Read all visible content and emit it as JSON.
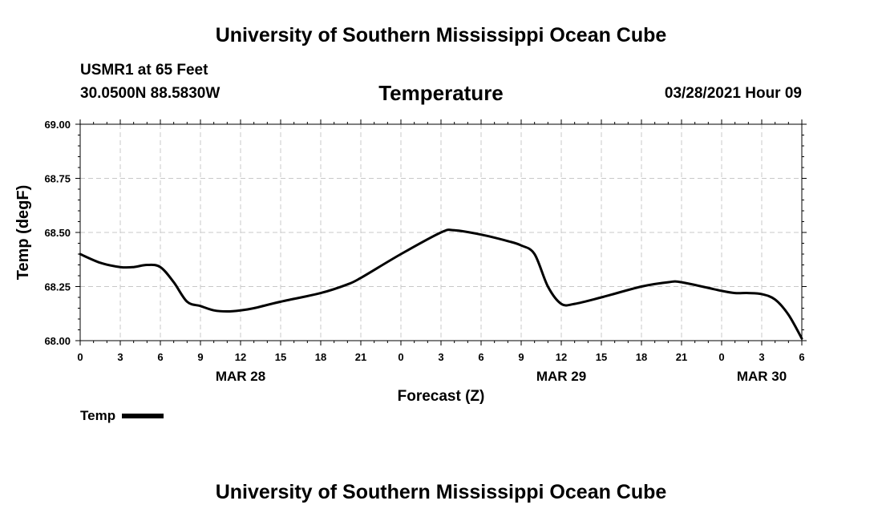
{
  "page": {
    "title_top": "University of Southern Mississippi Ocean Cube",
    "title_bottom": "University of Southern Mississippi Ocean Cube",
    "station": "USMR1 at 65 Feet",
    "coords": "30.0500N  88.5830W",
    "chart_title": "Temperature",
    "timestamp": "03/28/2021 Hour 09"
  },
  "chart_data": {
    "type": "line",
    "title": "Temperature",
    "xlabel": "Forecast (Z)",
    "ylabel": "Temp (degF)",
    "ylim": [
      68.0,
      69.0
    ],
    "xlim": [
      0,
      54
    ],
    "grid": true,
    "yticks": [
      68.0,
      68.25,
      68.5,
      68.75,
      69.0
    ],
    "yticklabels": [
      "68.00",
      "68.25",
      "68.50",
      "68.75",
      "69.00"
    ],
    "xticks": [
      0,
      3,
      6,
      9,
      12,
      15,
      18,
      21,
      24,
      27,
      30,
      33,
      36,
      39,
      42,
      45,
      48,
      51,
      54
    ],
    "xticklabels": [
      "0",
      "3",
      "6",
      "9",
      "12",
      "15",
      "18",
      "21",
      "0",
      "3",
      "6",
      "9",
      "12",
      "15",
      "18",
      "21",
      "0",
      "3",
      "6"
    ],
    "date_labels": [
      {
        "x": 12,
        "label": "MAR 28"
      },
      {
        "x": 36,
        "label": "MAR 29"
      },
      {
        "x": 51,
        "label": "MAR 30"
      }
    ],
    "legend": {
      "position": "bottom-left",
      "label": "Temp"
    },
    "series": [
      {
        "name": "Temp",
        "color": "#000000",
        "x": [
          0,
          1.5,
          3,
          4,
          5,
          6,
          7,
          8,
          9,
          10,
          11,
          12,
          13,
          15,
          18,
          20,
          21,
          24,
          27,
          28,
          30,
          32,
          33,
          34,
          35,
          36,
          37,
          39,
          42,
          44,
          45,
          48,
          49,
          50,
          51,
          52,
          53,
          54
        ],
        "values": [
          68.4,
          68.36,
          68.34,
          68.34,
          68.35,
          68.34,
          68.27,
          68.18,
          68.16,
          68.14,
          68.135,
          68.14,
          68.15,
          68.18,
          68.22,
          68.26,
          68.29,
          68.4,
          68.5,
          68.51,
          68.49,
          68.46,
          68.44,
          68.4,
          68.25,
          68.17,
          68.17,
          68.2,
          68.25,
          68.27,
          68.27,
          68.23,
          68.22,
          68.22,
          68.215,
          68.19,
          68.12,
          68.01
        ]
      }
    ]
  }
}
